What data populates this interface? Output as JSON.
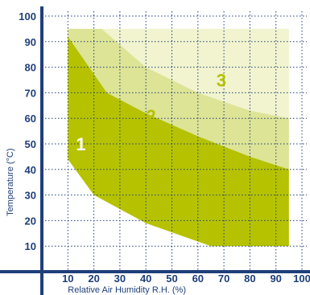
{
  "chart_data": {
    "type": "area",
    "xlabel": "Relative Air Humidity R.H. (%)",
    "ylabel": "Temperature (°C)",
    "xlim": [
      0,
      100
    ],
    "ylim": [
      0,
      100
    ],
    "x_ticks": [
      10,
      20,
      30,
      40,
      50,
      60,
      70,
      80,
      90,
      100
    ],
    "y_ticks": [
      10,
      20,
      30,
      40,
      50,
      60,
      70,
      80,
      90,
      100
    ],
    "grid": true,
    "regions": [
      {
        "label": "1",
        "color": "#b6c200",
        "lower_boundary": [
          [
            10,
            44
          ],
          [
            20,
            30
          ],
          [
            40,
            19
          ],
          [
            65,
            10
          ],
          [
            95,
            10
          ]
        ],
        "upper_boundary": [
          [
            10,
            92
          ],
          [
            25,
            70
          ],
          [
            40,
            62
          ],
          [
            60,
            53
          ],
          [
            80,
            45
          ],
          [
            95,
            40
          ]
        ],
        "label_position": [
          15,
          50
        ]
      },
      {
        "label": "2",
        "color": "#dde496",
        "lower_boundary": [
          [
            10,
            92
          ],
          [
            25,
            70
          ],
          [
            40,
            62
          ],
          [
            60,
            53
          ],
          [
            80,
            45
          ],
          [
            95,
            40
          ]
        ],
        "upper_boundary": [
          [
            10,
            95
          ],
          [
            23,
            95
          ],
          [
            40,
            80
          ],
          [
            60,
            70
          ],
          [
            80,
            63
          ],
          [
            95,
            60
          ]
        ],
        "label_position": [
          42,
          61
        ]
      },
      {
        "label": "3",
        "color": "#f1f4cf",
        "lower_boundary": [
          [
            10,
            95
          ],
          [
            23,
            95
          ],
          [
            40,
            80
          ],
          [
            60,
            70
          ],
          [
            80,
            63
          ],
          [
            95,
            60
          ]
        ],
        "upper_boundary": [
          [
            10,
            95
          ],
          [
            95,
            95
          ]
        ],
        "label_position": [
          69,
          75
        ]
      }
    ]
  }
}
